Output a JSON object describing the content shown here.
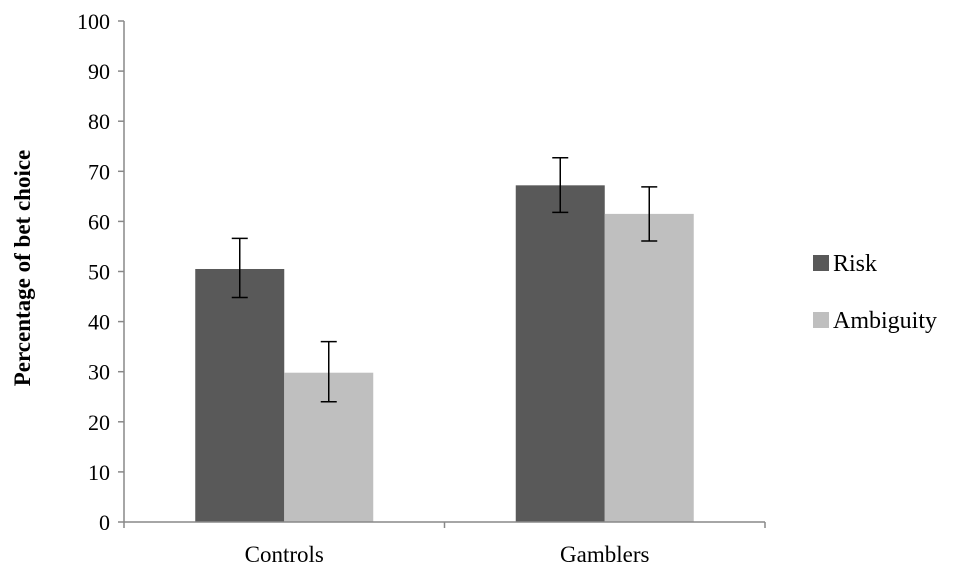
{
  "chart_data": {
    "type": "bar",
    "title": "",
    "xlabel": "",
    "ylabel": "Percentage of bet choice",
    "ylim": [
      0,
      100
    ],
    "yticks": [
      0,
      10,
      20,
      30,
      40,
      50,
      60,
      70,
      80,
      90,
      100
    ],
    "categories": [
      "Controls",
      "Gamblers"
    ],
    "series": [
      {
        "name": "Risk",
        "color": "#595959",
        "values": [
          50.5,
          67.2
        ],
        "err_low": [
          44.8,
          61.8
        ],
        "err_high": [
          56.6,
          72.7
        ]
      },
      {
        "name": "Ambiguity",
        "color": "#bfbfbf",
        "values": [
          29.8,
          61.5
        ],
        "err_low": [
          24.0,
          56.1
        ],
        "err_high": [
          36.0,
          66.9
        ]
      }
    ],
    "legend_position": "right",
    "grid": false
  }
}
